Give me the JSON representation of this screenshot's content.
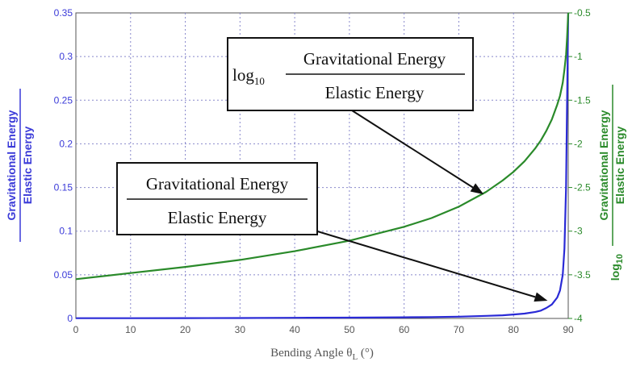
{
  "chart_data": {
    "type": "line",
    "xlabel": "Bending Angle θ",
    "xlabel_subscript": "L",
    "xlabel_suffix": " (°)",
    "xlim": [
      0,
      90
    ],
    "xticks": [
      0,
      10,
      20,
      30,
      40,
      50,
      60,
      70,
      80,
      90
    ],
    "ylim_left": [
      0,
      0.35
    ],
    "yticks_left": [
      0,
      0.05,
      0.1,
      0.15,
      0.2,
      0.25,
      0.3,
      0.35
    ],
    "ytick_labels_left": [
      "0",
      "0.05",
      "0.1",
      "0.15",
      "0.2",
      "0.25",
      "0.3",
      "0.35"
    ],
    "ylim_right": [
      -4,
      -0.5
    ],
    "yticks_right": [
      -4,
      -3.5,
      -3,
      -2.5,
      -2,
      -1.5,
      -1,
      -0.5
    ],
    "ytick_labels_right": [
      "-4",
      "-3.5",
      "-3",
      "-2.5",
      "-2",
      "-1.5",
      "-1",
      "-0.5"
    ],
    "ylabel_left": {
      "numerator": "Gravitational Energy",
      "denominator": "Elastic Energy"
    },
    "ylabel_right": {
      "prefix": "log",
      "subscript": "10",
      "numerator": "Gravitational Energy",
      "denominator": "Elastic Energy"
    },
    "grid": true,
    "series": [
      {
        "axis": "left",
        "color": "#2a2ad6",
        "x": [
          0,
          10,
          20,
          30,
          40,
          50,
          60,
          65,
          70,
          75,
          78,
          80,
          82,
          84,
          85,
          86,
          87,
          88,
          88.5,
          89,
          89.3,
          89.6,
          89.8,
          90
        ],
        "values": [
          0.0003,
          0.0003,
          0.0004,
          0.0005,
          0.0007,
          0.0009,
          0.0013,
          0.0016,
          0.002,
          0.003,
          0.0036,
          0.0045,
          0.0055,
          0.0075,
          0.009,
          0.012,
          0.016,
          0.024,
          0.032,
          0.05,
          0.08,
          0.15,
          0.25,
          0.35
        ]
      },
      {
        "axis": "right",
        "color": "#2a8a2a",
        "x": [
          0,
          10,
          20,
          30,
          40,
          50,
          60,
          65,
          70,
          75,
          78,
          80,
          82,
          84,
          85,
          86,
          87,
          88,
          88.5,
          89,
          89.3,
          89.6,
          89.8,
          90
        ],
        "values": [
          -3.55,
          -3.48,
          -3.41,
          -3.33,
          -3.23,
          -3.11,
          -2.95,
          -2.85,
          -2.72,
          -2.55,
          -2.42,
          -2.32,
          -2.2,
          -2.05,
          -1.96,
          -1.85,
          -1.72,
          -1.55,
          -1.45,
          -1.3,
          -1.15,
          -0.98,
          -0.78,
          -0.5
        ]
      }
    ],
    "annotations": [
      {
        "id": "ratio",
        "numerator": "Gravitational Energy",
        "denominator": "Elastic Energy",
        "points_to": [
          88,
          0.024
        ]
      },
      {
        "id": "log",
        "prefix": "log",
        "subscript": "10",
        "numerator": "Gravitational Energy",
        "denominator": "Elastic Energy",
        "points_to_right_axis": [
          75,
          -2.56
        ]
      }
    ]
  }
}
